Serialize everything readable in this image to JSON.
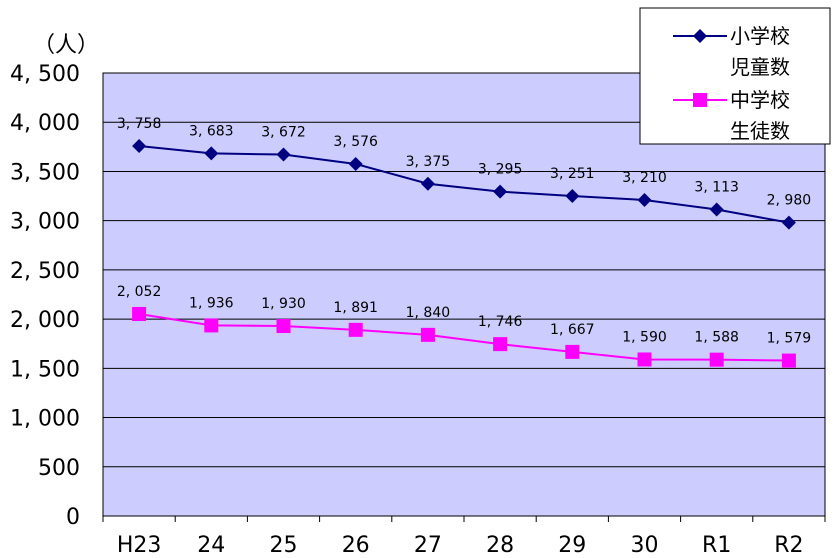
{
  "chart_data": {
    "type": "line",
    "title": "",
    "ylabel": "（人）",
    "xlabel": "",
    "categories": [
      "H23",
      "24",
      "25",
      "26",
      "27",
      "28",
      "29",
      "30",
      "R1",
      "R2"
    ],
    "ylim": [
      0,
      4500
    ],
    "yticks": [
      0,
      500,
      1000,
      1500,
      2000,
      2500,
      3000,
      3500,
      4000,
      4500
    ],
    "ytick_labels": [
      "0",
      "500",
      "1, 000",
      "1, 500",
      "2, 000",
      "2, 500",
      "3, 000",
      "3, 500",
      "4, 000",
      "4, 500"
    ],
    "grid": true,
    "plot_background": "#ccccff",
    "legend_position": "top-right",
    "series": [
      {
        "name": [
          "小学校",
          "児童数"
        ],
        "color": "#000080",
        "marker": "diamond",
        "values": [
          3758,
          3683,
          3672,
          3576,
          3375,
          3295,
          3251,
          3210,
          3113,
          2980
        ],
        "labels": [
          "3, 758",
          "3, 683",
          "3, 672",
          "3, 576",
          "3, 375",
          "3, 295",
          "3, 251",
          "3, 210",
          "3, 113",
          "2, 980"
        ]
      },
      {
        "name": [
          "中学校",
          "生徒数"
        ],
        "color": "#ff00ff",
        "marker": "square",
        "values": [
          2052,
          1936,
          1930,
          1891,
          1840,
          1746,
          1667,
          1590,
          1588,
          1579
        ],
        "labels": [
          "2, 052",
          "1, 936",
          "1, 930",
          "1, 891",
          "1, 840",
          "1, 746",
          "1, 667",
          "1, 590",
          "1, 588",
          "1, 579"
        ]
      }
    ]
  }
}
